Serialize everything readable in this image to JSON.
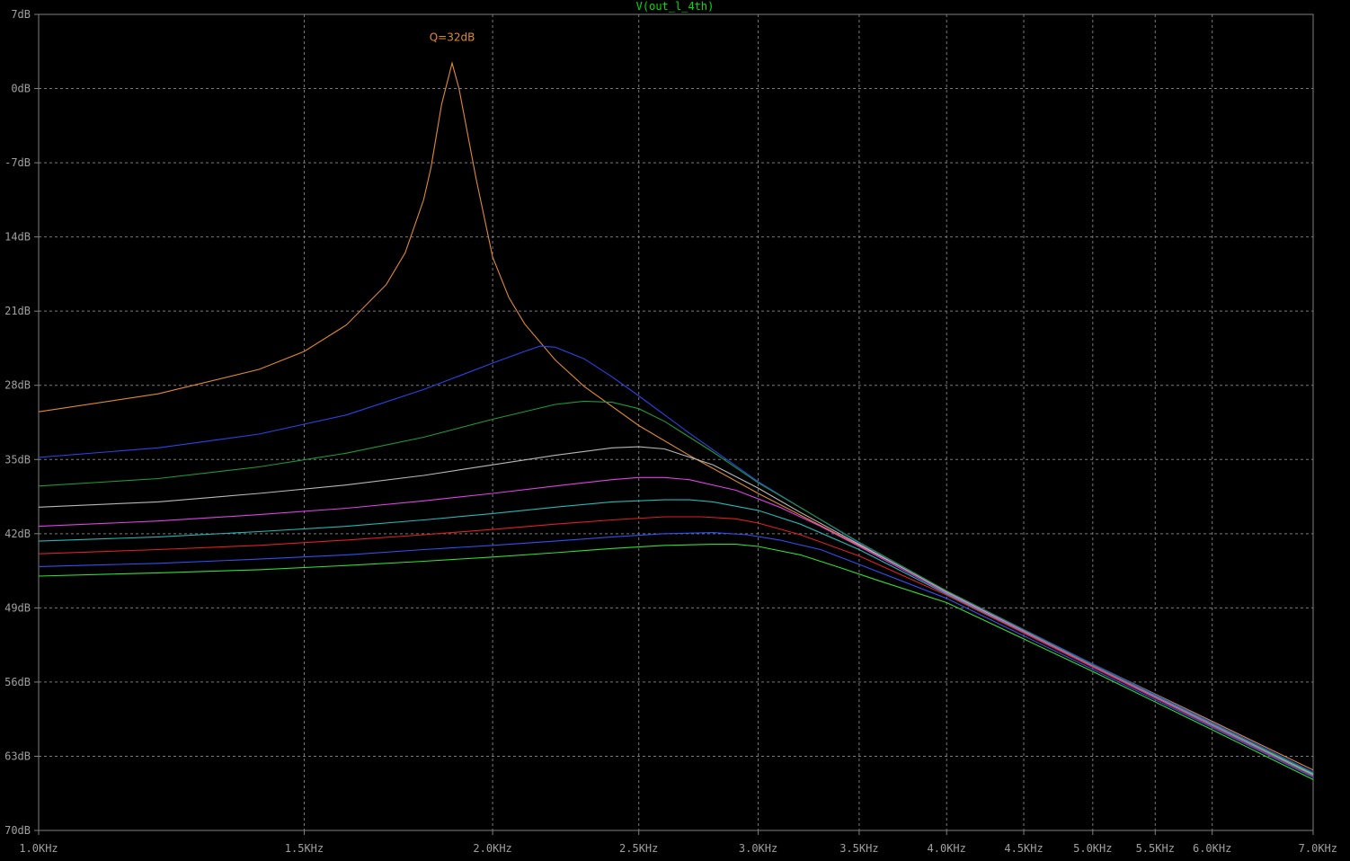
{
  "trace_label": "V(out_l_4th)",
  "colors": {
    "background": "#000000",
    "frame": "#808080",
    "grid": "#7a7a7a",
    "tick_text": "#a0a0a0",
    "title": "#00e000"
  },
  "chart_data": {
    "type": "line",
    "x_scale": "log",
    "x_unit": "Hz",
    "xlim": [
      1000,
      7000
    ],
    "ylim": [
      -70,
      7
    ],
    "x_ticks": [
      {
        "value": 1000,
        "label": "1.0KHz"
      },
      {
        "value": 1500,
        "label": "1.5KHz"
      },
      {
        "value": 2000,
        "label": "2.0KHz"
      },
      {
        "value": 2500,
        "label": "2.5KHz"
      },
      {
        "value": 3000,
        "label": "3.0KHz"
      },
      {
        "value": 3500,
        "label": "3.5KHz"
      },
      {
        "value": 4000,
        "label": "4.0KHz"
      },
      {
        "value": 4500,
        "label": "4.5KHz"
      },
      {
        "value": 5000,
        "label": "5.0KHz"
      },
      {
        "value": 5500,
        "label": "5.5KHz"
      },
      {
        "value": 6000,
        "label": "6.0KHz"
      },
      {
        "value": 7000,
        "label": "7.0KHz"
      }
    ],
    "y_ticks": [
      {
        "value": 7,
        "label": "7dB"
      },
      {
        "value": 0,
        "label": "0dB"
      },
      {
        "value": -7,
        "label": "-7dB"
      },
      {
        "value": -14,
        "label": "14dB"
      },
      {
        "value": -21,
        "label": "21dB"
      },
      {
        "value": -28,
        "label": "28dB"
      },
      {
        "value": -35,
        "label": "35dB"
      },
      {
        "value": -42,
        "label": "42dB"
      },
      {
        "value": -49,
        "label": "49dB"
      },
      {
        "value": -56,
        "label": "56dB"
      },
      {
        "value": -63,
        "label": "63dB"
      },
      {
        "value": -70,
        "label": "70dB"
      }
    ],
    "grid": true,
    "annotation": {
      "text": "Q=32dB",
      "x": 1880,
      "y": 3.5,
      "color": "#e08a30"
    },
    "series": [
      {
        "color": "#e08a30",
        "x": [
          1000,
          1200,
          1400,
          1500,
          1600,
          1700,
          1750,
          1800,
          1820,
          1850,
          1880,
          1900,
          1950,
          2000,
          2050,
          2100,
          2200,
          2300,
          2500,
          2700,
          3000,
          3500,
          4000,
          5000,
          6000,
          7000
        ],
        "y": [
          -30.5,
          -28.8,
          -26.5,
          -24.8,
          -22.3,
          -18.5,
          -15.5,
          -10.5,
          -7.5,
          -1.5,
          2.4,
          0,
          -8.5,
          -15.9,
          -19.7,
          -22.2,
          -25.6,
          -28.1,
          -31.8,
          -34.6,
          -38.2,
          -43.1,
          -47.4,
          -54.3,
          -59.7,
          -64.3
        ]
      },
      {
        "color": "#2a44e8",
        "x": [
          1000,
          1200,
          1400,
          1600,
          1800,
          2000,
          2100,
          2150,
          2200,
          2300,
          2400,
          2500,
          2700,
          3000,
          3500,
          4000,
          5000,
          6000,
          7000
        ],
        "y": [
          -34.8,
          -33.9,
          -32.6,
          -30.8,
          -28.4,
          -25.9,
          -24.8,
          -24.3,
          -24.4,
          -25.5,
          -27.2,
          -29.0,
          -32.5,
          -37.1,
          -42.9,
          -47.4,
          -54.3,
          -59.8,
          -64.5
        ]
      },
      {
        "color": "#1e9a3a",
        "x": [
          1000,
          1200,
          1400,
          1600,
          1800,
          2000,
          2200,
          2300,
          2400,
          2500,
          2600,
          2800,
          3000,
          3500,
          4000,
          5000,
          6000,
          7000
        ],
        "y": [
          -37.5,
          -36.8,
          -35.7,
          -34.4,
          -32.9,
          -31.2,
          -29.8,
          -29.5,
          -29.6,
          -30.2,
          -31.4,
          -34.3,
          -37.2,
          -42.8,
          -47.4,
          -54.4,
          -59.9,
          -64.6
        ]
      },
      {
        "color": "#b8b8b8",
        "x": [
          1000,
          1200,
          1400,
          1600,
          1800,
          2000,
          2200,
          2400,
          2500,
          2600,
          2800,
          3000,
          3200,
          3500,
          4000,
          5000,
          6000,
          7000
        ],
        "y": [
          -39.5,
          -39.0,
          -38.2,
          -37.4,
          -36.5,
          -35.5,
          -34.6,
          -33.9,
          -33.8,
          -34.0,
          -35.5,
          -37.7,
          -40.0,
          -43.0,
          -47.5,
          -54.5,
          -60.0,
          -64.7
        ]
      },
      {
        "color": "#e040e8",
        "x": [
          1000,
          1200,
          1400,
          1600,
          1800,
          2000,
          2200,
          2400,
          2500,
          2600,
          2700,
          2900,
          3100,
          3300,
          3500,
          4000,
          5000,
          6000,
          7000
        ],
        "y": [
          -41.3,
          -40.8,
          -40.2,
          -39.6,
          -38.9,
          -38.2,
          -37.5,
          -36.9,
          -36.7,
          -36.7,
          -36.9,
          -37.9,
          -39.5,
          -41.3,
          -43.2,
          -47.6,
          -54.5,
          -60.0,
          -64.8
        ]
      },
      {
        "color": "#22b8b8",
        "x": [
          1000,
          1200,
          1400,
          1600,
          1800,
          2000,
          2200,
          2400,
          2600,
          2700,
          2800,
          3000,
          3200,
          3500,
          4000,
          5000,
          6000,
          7000
        ],
        "y": [
          -42.7,
          -42.3,
          -41.8,
          -41.3,
          -40.7,
          -40.1,
          -39.5,
          -39.0,
          -38.8,
          -38.8,
          -39.0,
          -39.8,
          -41.1,
          -43.5,
          -47.7,
          -54.6,
          -60.1,
          -64.8
        ]
      },
      {
        "color": "#e02020",
        "x": [
          1000,
          1200,
          1400,
          1600,
          1800,
          2000,
          2200,
          2400,
          2600,
          2750,
          2900,
          3000,
          3200,
          3500,
          4000,
          5000,
          6000,
          7000
        ],
        "y": [
          -43.9,
          -43.5,
          -43.1,
          -42.6,
          -42.1,
          -41.6,
          -41.1,
          -40.7,
          -40.4,
          -40.4,
          -40.6,
          -41.0,
          -42.1,
          -44.1,
          -47.8,
          -54.6,
          -60.2,
          -64.9
        ]
      },
      {
        "color": "#3050f0",
        "x": [
          1000,
          1200,
          1400,
          1600,
          1800,
          2000,
          2200,
          2400,
          2600,
          2800,
          2950,
          3100,
          3300,
          3500,
          4000,
          5000,
          6000,
          7000
        ],
        "y": [
          -45.1,
          -44.8,
          -44.4,
          -44.0,
          -43.5,
          -43.1,
          -42.7,
          -42.3,
          -42.0,
          -41.9,
          -42.1,
          -42.6,
          -43.5,
          -44.9,
          -48.1,
          -54.8,
          -60.3,
          -65.0
        ]
      },
      {
        "color": "#30e030",
        "x": [
          1000,
          1200,
          1400,
          1600,
          1800,
          2000,
          2200,
          2400,
          2600,
          2800,
          2900,
          3000,
          3200,
          3400,
          3600,
          4000,
          5000,
          6000,
          7000
        ],
        "y": [
          -46.0,
          -45.7,
          -45.4,
          -45.0,
          -44.6,
          -44.2,
          -43.8,
          -43.4,
          -43.1,
          -43.0,
          -43.0,
          -43.2,
          -44.0,
          -45.2,
          -46.4,
          -48.5,
          -55.0,
          -60.5,
          -65.2
        ]
      }
    ]
  }
}
